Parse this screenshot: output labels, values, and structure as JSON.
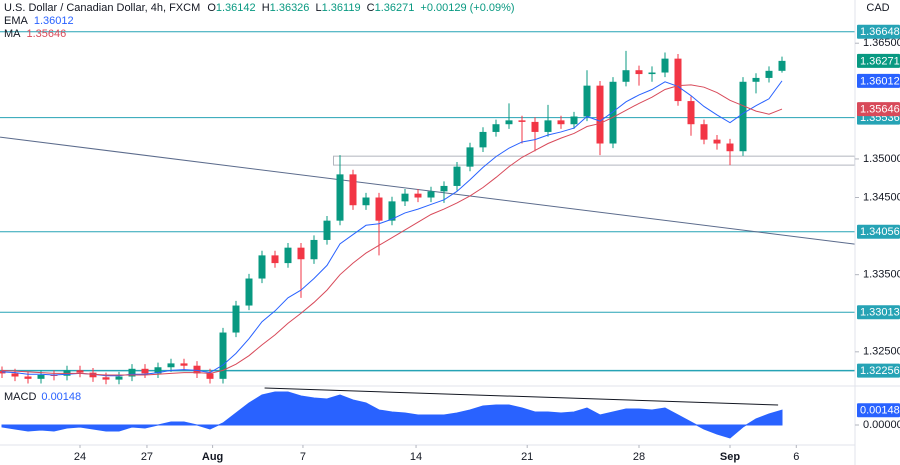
{
  "chart_data": {
    "type": "candlestick",
    "title": "U.S. Dollar / Canadian Dollar, 4h, FXCM",
    "ohlc_labels": [
      "O",
      "H",
      "L",
      "C"
    ],
    "change": "+0.00129 (+0.09%)",
    "currency": "CAD",
    "candles": {
      "up_color": "#089981",
      "down_color": "#f23645",
      "open": [
        1.3225,
        1.3222,
        1.3218,
        1.3215,
        1.322,
        1.3219,
        1.3226,
        1.3223,
        1.3217,
        1.3214,
        1.3218,
        1.3228,
        1.3222,
        1.323,
        1.3235,
        1.3232,
        1.3222,
        1.3215,
        1.3275,
        1.331,
        1.3345,
        1.3375,
        1.3365,
        1.3385,
        1.337,
        1.3395,
        1.342,
        1.348,
        1.344,
        1.345,
        1.342,
        1.3445,
        1.3455,
        1.345,
        1.3458,
        1.3465,
        1.349,
        1.3515,
        1.3535,
        1.3545,
        1.355,
        1.3548,
        1.3535,
        1.355,
        1.3545,
        1.3555,
        1.3595,
        1.352,
        1.36,
        1.3615,
        1.361,
        1.3612,
        1.363,
        1.3575,
        1.3545,
        1.3525,
        1.352,
        1.351,
        1.36,
        1.3605,
        1.36142
      ],
      "high": [
        1.3231,
        1.3228,
        1.3224,
        1.3226,
        1.3226,
        1.3232,
        1.3232,
        1.3229,
        1.3223,
        1.3224,
        1.3234,
        1.3234,
        1.3236,
        1.3241,
        1.3241,
        1.3238,
        1.3228,
        1.3281,
        1.3316,
        1.3351,
        1.3381,
        1.3381,
        1.3391,
        1.3391,
        1.3401,
        1.3426,
        1.3505,
        1.3486,
        1.3456,
        1.3456,
        1.3451,
        1.3461,
        1.3461,
        1.3464,
        1.3471,
        1.3496,
        1.3521,
        1.3541,
        1.3551,
        1.3572,
        1.3556,
        1.3554,
        1.357,
        1.3556,
        1.3561,
        1.3615,
        1.3601,
        1.3606,
        1.364,
        1.3621,
        1.362,
        1.3638,
        1.3636,
        1.3581,
        1.3551,
        1.3531,
        1.3526,
        1.3606,
        1.3611,
        1.362,
        1.36326
      ],
      "low": [
        1.3216,
        1.3212,
        1.3209,
        1.3209,
        1.3213,
        1.3213,
        1.3217,
        1.3211,
        1.3208,
        1.3208,
        1.3212,
        1.3216,
        1.3216,
        1.3224,
        1.3226,
        1.3216,
        1.3209,
        1.3209,
        1.3269,
        1.3304,
        1.3339,
        1.3359,
        1.3359,
        1.332,
        1.3364,
        1.3389,
        1.3414,
        1.3434,
        1.3434,
        1.3375,
        1.3414,
        1.3439,
        1.3444,
        1.3444,
        1.3443,
        1.3459,
        1.3484,
        1.3509,
        1.3529,
        1.3539,
        1.352,
        1.351,
        1.3529,
        1.3539,
        1.3539,
        1.3549,
        1.3505,
        1.3514,
        1.3594,
        1.3595,
        1.36,
        1.3606,
        1.3569,
        1.353,
        1.3519,
        1.3512,
        1.3492,
        1.3504,
        1.3585,
        1.3599,
        1.36119
      ],
      "close": [
        1.3222,
        1.3218,
        1.3215,
        1.322,
        1.3219,
        1.3226,
        1.3223,
        1.3217,
        1.3214,
        1.3218,
        1.3228,
        1.3222,
        1.323,
        1.3235,
        1.3232,
        1.3222,
        1.3215,
        1.3275,
        1.331,
        1.3345,
        1.3375,
        1.3365,
        1.3385,
        1.337,
        1.3395,
        1.342,
        1.348,
        1.344,
        1.345,
        1.342,
        1.3445,
        1.3455,
        1.345,
        1.3458,
        1.3465,
        1.349,
        1.3515,
        1.3535,
        1.3545,
        1.355,
        1.3548,
        1.3535,
        1.355,
        1.3545,
        1.3555,
        1.3595,
        1.352,
        1.36,
        1.3615,
        1.361,
        1.3612,
        1.363,
        1.3575,
        1.3545,
        1.3525,
        1.352,
        1.351,
        1.36,
        1.3605,
        1.36142,
        1.36271
      ]
    },
    "series": [
      {
        "name": "EMA",
        "color": "#2962ff",
        "values": [
          1.3224,
          1.3223,
          1.3221,
          1.3221,
          1.322,
          1.3221,
          1.3222,
          1.3221,
          1.3219,
          1.3219,
          1.3221,
          1.3221,
          1.3223,
          1.3226,
          1.3227,
          1.3226,
          1.3223,
          1.3233,
          1.3248,
          1.3267,
          1.3289,
          1.3303,
          1.332,
          1.333,
          1.3345,
          1.3362,
          1.339,
          1.3402,
          1.3414,
          1.3416,
          1.3422,
          1.343,
          1.3435,
          1.3441,
          1.3447,
          1.3458,
          1.3473,
          1.3489,
          1.3503,
          1.3514,
          1.3522,
          1.3525,
          1.3531,
          1.3535,
          1.354,
          1.3555,
          1.3549,
          1.3561,
          1.3574,
          1.3583,
          1.359,
          1.36,
          1.3594,
          1.3582,
          1.3568,
          1.3557,
          1.3547,
          1.3559,
          1.3569,
          1.3578,
          1.36012
        ]
      },
      {
        "name": "MA",
        "color": "#d84a5a",
        "values": [
          1.3226,
          1.3225,
          1.3224,
          1.3223,
          1.3222,
          1.3222,
          1.3222,
          1.3221,
          1.322,
          1.322,
          1.322,
          1.322,
          1.3221,
          1.3222,
          1.3223,
          1.3223,
          1.3222,
          1.3226,
          1.3234,
          1.3245,
          1.3259,
          1.3272,
          1.3287,
          1.33,
          1.3314,
          1.333,
          1.335,
          1.3365,
          1.3378,
          1.3388,
          1.3398,
          1.3408,
          1.3418,
          1.3428,
          1.3435,
          1.3443,
          1.3452,
          1.3463,
          1.3476,
          1.349,
          1.3502,
          1.3511,
          1.352,
          1.3527,
          1.3533,
          1.3542,
          1.3546,
          1.3554,
          1.3563,
          1.3572,
          1.358,
          1.359,
          1.3595,
          1.3596,
          1.3593,
          1.3586,
          1.3576,
          1.3569,
          1.3562,
          1.3558,
          1.35646
        ]
      }
    ],
    "ylim": [
      1.3207,
      1.3706
    ],
    "yticks": [
      {
        "value": 1.365,
        "label": "1.36500"
      },
      {
        "value": 1.35,
        "label": "1.35000"
      },
      {
        "value": 1.345,
        "label": "1.34500"
      },
      {
        "value": 1.335,
        "label": "1.33500"
      },
      {
        "value": 1.325,
        "label": "1.32500"
      }
    ],
    "levels": {
      "color": "#26a3b5",
      "values": [
        1.36648,
        1.35536,
        1.34056,
        1.33013,
        1.32256
      ]
    },
    "trendline": {
      "color": "#5b6b8c",
      "x": [
        -0.15,
        65.6
      ],
      "y": [
        1.35282,
        1.33896
      ]
    },
    "zone": {
      "color": "#b2b5be",
      "x": [
        25.5,
        65.6
      ],
      "y": [
        1.3492,
        1.35036
      ]
    },
    "xticks": [
      {
        "value": 6,
        "label": "24"
      },
      {
        "value": 11.15,
        "label": "27"
      },
      {
        "value": 16.2,
        "label": "Aug"
      },
      {
        "value": 23.15,
        "label": "7"
      },
      {
        "value": 31.85,
        "label": "14"
      },
      {
        "value": 40.4,
        "label": "21"
      },
      {
        "value": 49,
        "label": "28"
      },
      {
        "value": 56,
        "label": "Sep"
      },
      {
        "value": 61.1,
        "label": "6"
      }
    ],
    "macd": {
      "name": "MACD",
      "color": "#2962ff",
      "values": [
        -0.0002,
        -0.0004,
        -0.0006,
        -0.0005,
        -0.0006,
        -0.0003,
        -0.0002,
        -0.0004,
        -0.0006,
        -0.0006,
        -0.0002,
        -0.0003,
        0.0,
        0.0003,
        0.0003,
        0.0,
        -0.0004,
        0.0002,
        0.0012,
        0.0022,
        0.003,
        0.0033,
        0.0033,
        0.0029,
        0.0027,
        0.0026,
        0.003,
        0.0025,
        0.0022,
        0.0015,
        0.0013,
        0.0012,
        0.001,
        0.001,
        0.001,
        0.0012,
        0.0015,
        0.0019,
        0.002,
        0.002,
        0.0017,
        0.0013,
        0.0013,
        0.0012,
        0.0013,
        0.0017,
        0.001,
        0.0013,
        0.0016,
        0.0016,
        0.0015,
        0.0017,
        0.001,
        0.0003,
        -0.0004,
        -0.0009,
        -0.0013,
        -0.0002,
        0.0006,
        0.0011,
        0.00148
      ],
      "ylim": [
        -0.002,
        0.0038
      ],
      "yticks": [
        {
          "value": 0,
          "label": "0.00000"
        }
      ],
      "trendline": {
        "color": "#131722",
        "x": [
          20.2,
          59.7
        ],
        "y": [
          0.0037,
          0.002
        ]
      }
    }
  }
}
